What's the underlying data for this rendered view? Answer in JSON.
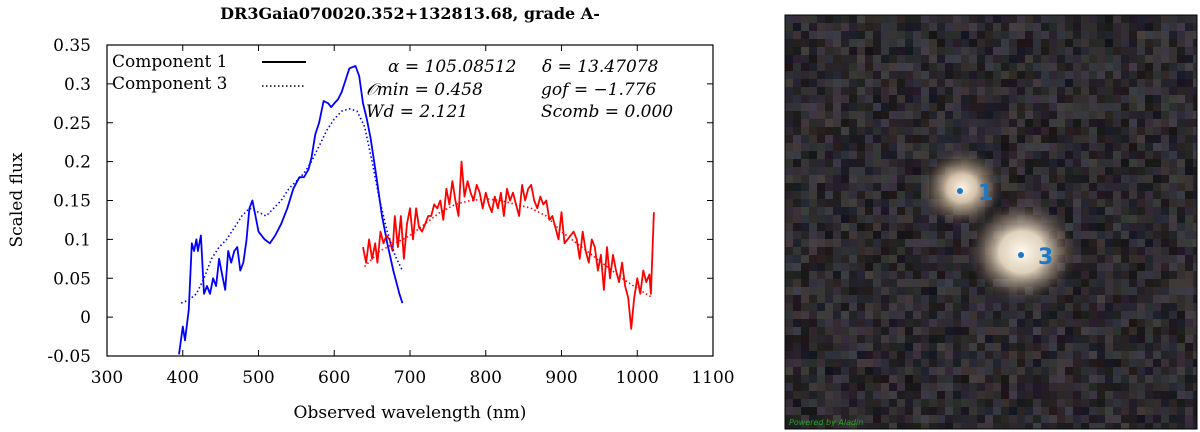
{
  "chart_data": {
    "type": "line",
    "title": "DR3Gaia070020.352+132813.68, grade A-",
    "xlabel": "Observed wavelength (nm)",
    "ylabel": "Scaled flux",
    "xlim": [
      300,
      1100
    ],
    "ylim": [
      -0.05,
      0.35
    ],
    "x_ticks": [
      "300",
      "400",
      "500",
      "600",
      "700",
      "800",
      "900",
      "1000",
      "1100"
    ],
    "y_ticks": [
      "-0.05",
      "0",
      "0.05",
      "0.1",
      "0.15",
      "0.2",
      "0.25",
      "0.3",
      "0.35"
    ],
    "legend": [
      {
        "name": "Component 1",
        "style": "solid"
      },
      {
        "name": "Component 3",
        "style": "dotted"
      }
    ],
    "annotations": {
      "alpha": "α = 105.08512",
      "delta": "δ = 13.47078",
      "omin": "𝒪min = 0.458",
      "gof": "gof = −1.776",
      "wd": "Wd = 2.121",
      "scomb": "Scomb = 0.000"
    },
    "series": [
      {
        "name": "Component 1",
        "style": "solid",
        "color": "#0000ff",
        "points": [
          [
            395,
            -0.048
          ],
          [
            400,
            -0.012
          ],
          [
            403,
            -0.03
          ],
          [
            408,
            0.01
          ],
          [
            412,
            0.095
          ],
          [
            415,
            0.085
          ],
          [
            418,
            0.1
          ],
          [
            420,
            0.085
          ],
          [
            424,
            0.105
          ],
          [
            428,
            0.03
          ],
          [
            432,
            0.04
          ],
          [
            436,
            0.03
          ],
          [
            440,
            0.05
          ],
          [
            444,
            0.04
          ],
          [
            448,
            0.075
          ],
          [
            452,
            0.055
          ],
          [
            456,
            0.035
          ],
          [
            460,
            0.085
          ],
          [
            464,
            0.07
          ],
          [
            468,
            0.085
          ],
          [
            472,
            0.09
          ],
          [
            476,
            0.06
          ],
          [
            480,
            0.07
          ],
          [
            484,
            0.098
          ],
          [
            488,
            0.14
          ],
          [
            492,
            0.15
          ],
          [
            496,
            0.13
          ],
          [
            500,
            0.11
          ],
          [
            508,
            0.1
          ],
          [
            515,
            0.095
          ],
          [
            522,
            0.105
          ],
          [
            530,
            0.12
          ],
          [
            538,
            0.14
          ],
          [
            546,
            0.165
          ],
          [
            554,
            0.18
          ],
          [
            560,
            0.18
          ],
          [
            566,
            0.19
          ],
          [
            570,
            0.205
          ],
          [
            575,
            0.235
          ],
          [
            580,
            0.25
          ],
          [
            586,
            0.278
          ],
          [
            592,
            0.275
          ],
          [
            596,
            0.27
          ],
          [
            600,
            0.275
          ],
          [
            605,
            0.28
          ],
          [
            610,
            0.29
          ],
          [
            615,
            0.305
          ],
          [
            620,
            0.32
          ],
          [
            628,
            0.323
          ],
          [
            633,
            0.31
          ],
          [
            638,
            0.275
          ],
          [
            643,
            0.255
          ],
          [
            648,
            0.23
          ],
          [
            655,
            0.185
          ],
          [
            663,
            0.13
          ],
          [
            670,
            0.095
          ],
          [
            678,
            0.06
          ],
          [
            686,
            0.03
          ],
          [
            690,
            0.018
          ]
        ]
      },
      {
        "name": "Component 1",
        "style": "solid",
        "color": "#ff0000",
        "points": [
          [
            638,
            0.09
          ],
          [
            642,
            0.07
          ],
          [
            646,
            0.1
          ],
          [
            650,
            0.075
          ],
          [
            654,
            0.095
          ],
          [
            657,
            0.07
          ],
          [
            661,
            0.11
          ],
          [
            665,
            0.095
          ],
          [
            669,
            0.105
          ],
          [
            673,
            0.1
          ],
          [
            677,
            0.085
          ],
          [
            680,
            0.13
          ],
          [
            684,
            0.09
          ],
          [
            688,
            0.13
          ],
          [
            692,
            0.075
          ],
          [
            696,
            0.12
          ],
          [
            700,
            0.14
          ],
          [
            704,
            0.1
          ],
          [
            708,
            0.14
          ],
          [
            712,
            0.115
          ],
          [
            716,
            0.11
          ],
          [
            720,
            0.12
          ],
          [
            724,
            0.13
          ],
          [
            728,
            0.13
          ],
          [
            732,
            0.145
          ],
          [
            736,
            0.14
          ],
          [
            740,
            0.15
          ],
          [
            744,
            0.125
          ],
          [
            748,
            0.165
          ],
          [
            752,
            0.145
          ],
          [
            756,
            0.175
          ],
          [
            760,
            0.15
          ],
          [
            764,
            0.13
          ],
          [
            768,
            0.2
          ],
          [
            772,
            0.155
          ],
          [
            776,
            0.175
          ],
          [
            780,
            0.16
          ],
          [
            784,
            0.15
          ],
          [
            788,
            0.17
          ],
          [
            792,
            0.16
          ],
          [
            796,
            0.14
          ],
          [
            800,
            0.16
          ],
          [
            804,
            0.145
          ],
          [
            808,
            0.135
          ],
          [
            812,
            0.155
          ],
          [
            816,
            0.14
          ],
          [
            820,
            0.16
          ],
          [
            824,
            0.13
          ],
          [
            828,
            0.165
          ],
          [
            832,
            0.15
          ],
          [
            836,
            0.16
          ],
          [
            840,
            0.145
          ],
          [
            844,
            0.13
          ],
          [
            848,
            0.17
          ],
          [
            852,
            0.15
          ],
          [
            856,
            0.165
          ],
          [
            860,
            0.17
          ],
          [
            864,
            0.15
          ],
          [
            868,
            0.14
          ],
          [
            872,
            0.155
          ],
          [
            876,
            0.145
          ],
          [
            880,
            0.15
          ],
          [
            884,
            0.125
          ],
          [
            888,
            0.13
          ],
          [
            892,
            0.115
          ],
          [
            896,
            0.1
          ],
          [
            900,
            0.135
          ],
          [
            904,
            0.095
          ],
          [
            908,
            0.1
          ],
          [
            912,
            0.105
          ],
          [
            916,
            0.11
          ],
          [
            920,
            0.1
          ],
          [
            924,
            0.075
          ],
          [
            928,
            0.11
          ],
          [
            932,
            0.085
          ],
          [
            936,
            0.07
          ],
          [
            940,
            0.1
          ],
          [
            944,
            0.09
          ],
          [
            948,
            0.06
          ],
          [
            952,
            0.08
          ],
          [
            956,
            0.035
          ],
          [
            960,
            0.09
          ],
          [
            964,
            0.05
          ],
          [
            968,
            0.08
          ],
          [
            972,
            0.06
          ],
          [
            976,
            0.045
          ],
          [
            980,
            0.07
          ],
          [
            984,
            0.04
          ],
          [
            988,
            0.025
          ],
          [
            992,
            -0.015
          ],
          [
            996,
            0.025
          ],
          [
            1000,
            0.05
          ],
          [
            1004,
            0.03
          ],
          [
            1008,
            0.06
          ],
          [
            1012,
            0.045
          ],
          [
            1016,
            0.055
          ],
          [
            1018,
            0.03
          ],
          [
            1022,
            0.135
          ]
        ]
      },
      {
        "name": "Component 3",
        "style": "dotted",
        "color": "#0000ff",
        "points": [
          [
            398,
            0.018
          ],
          [
            408,
            0.022
          ],
          [
            418,
            0.03
          ],
          [
            428,
            0.05
          ],
          [
            438,
            0.075
          ],
          [
            448,
            0.09
          ],
          [
            458,
            0.1
          ],
          [
            468,
            0.115
          ],
          [
            478,
            0.13
          ],
          [
            488,
            0.14
          ],
          [
            500,
            0.135
          ],
          [
            510,
            0.13
          ],
          [
            520,
            0.14
          ],
          [
            530,
            0.15
          ],
          [
            540,
            0.165
          ],
          [
            550,
            0.175
          ],
          [
            560,
            0.185
          ],
          [
            570,
            0.2
          ],
          [
            580,
            0.22
          ],
          [
            590,
            0.24
          ],
          [
            600,
            0.255
          ],
          [
            610,
            0.265
          ],
          [
            620,
            0.268
          ],
          [
            630,
            0.265
          ],
          [
            640,
            0.245
          ],
          [
            650,
            0.2
          ],
          [
            660,
            0.15
          ],
          [
            670,
            0.11
          ],
          [
            680,
            0.08
          ],
          [
            690,
            0.06
          ]
        ]
      },
      {
        "name": "Component 3",
        "style": "dotted",
        "color": "#ff0000",
        "points": [
          [
            640,
            0.065
          ],
          [
            660,
            0.085
          ],
          [
            680,
            0.095
          ],
          [
            700,
            0.105
          ],
          [
            720,
            0.12
          ],
          [
            740,
            0.135
          ],
          [
            760,
            0.145
          ],
          [
            780,
            0.15
          ],
          [
            800,
            0.152
          ],
          [
            820,
            0.15
          ],
          [
            840,
            0.145
          ],
          [
            860,
            0.14
          ],
          [
            880,
            0.13
          ],
          [
            900,
            0.11
          ],
          [
            920,
            0.095
          ],
          [
            940,
            0.08
          ],
          [
            960,
            0.065
          ],
          [
            980,
            0.05
          ],
          [
            1000,
            0.037
          ],
          [
            1020,
            0.025
          ]
        ]
      }
    ]
  },
  "sky_image": {
    "credit": "Powered by Aladin",
    "sources": [
      {
        "label": "1",
        "color": "#1a78c8"
      },
      {
        "label": "3",
        "color": "#1a78c8"
      }
    ]
  }
}
